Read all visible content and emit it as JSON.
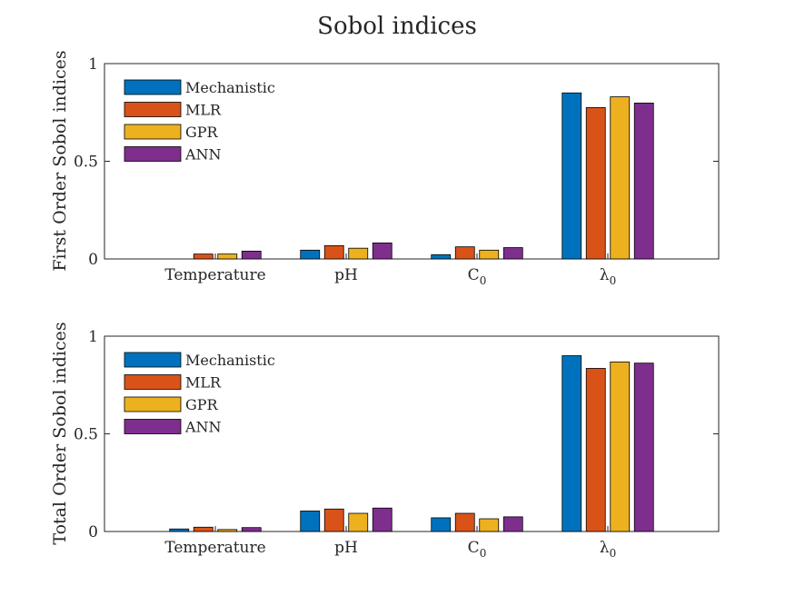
{
  "figure": {
    "title": "Sobol indices"
  },
  "chart_data": [
    {
      "type": "bar",
      "ylabel": "First Order Sobol indices",
      "ylim": [
        0,
        1
      ],
      "yticks": [
        0,
        0.5,
        1
      ],
      "ytick_labels": [
        "0",
        "0.5",
        "1"
      ],
      "categories": [
        "Temperature",
        "pH",
        "C",
        "λ"
      ],
      "category_subscripts": [
        "",
        "",
        "0",
        "0"
      ],
      "legend_position": "top-left",
      "series": [
        {
          "name": "Mechanistic",
          "color": "#0072BD",
          "values": [
            0.0,
            0.045,
            0.022,
            0.85
          ]
        },
        {
          "name": "MLR",
          "color": "#D95319",
          "values": [
            0.025,
            0.068,
            0.062,
            0.775
          ]
        },
        {
          "name": "GPR",
          "color": "#EDB120",
          "values": [
            0.025,
            0.055,
            0.045,
            0.83
          ]
        },
        {
          "name": "ANN",
          "color": "#7E2F8E",
          "values": [
            0.04,
            0.082,
            0.058,
            0.798
          ]
        }
      ]
    },
    {
      "type": "bar",
      "ylabel": "Total Order Sobol indices",
      "ylim": [
        0,
        1
      ],
      "yticks": [
        0,
        0.5,
        1
      ],
      "ytick_labels": [
        "0",
        "0.5",
        "1"
      ],
      "categories": [
        "Temperature",
        "pH",
        "C",
        "λ"
      ],
      "category_subscripts": [
        "",
        "",
        "0",
        "0"
      ],
      "legend_position": "top-left",
      "series": [
        {
          "name": "Mechanistic",
          "color": "#0072BD",
          "values": [
            0.013,
            0.105,
            0.07,
            0.9
          ]
        },
        {
          "name": "MLR",
          "color": "#D95319",
          "values": [
            0.022,
            0.115,
            0.093,
            0.835
          ]
        },
        {
          "name": "GPR",
          "color": "#EDB120",
          "values": [
            0.01,
            0.093,
            0.065,
            0.868
          ]
        },
        {
          "name": "ANN",
          "color": "#7E2F8E",
          "values": [
            0.02,
            0.12,
            0.075,
            0.862
          ]
        }
      ]
    }
  ]
}
